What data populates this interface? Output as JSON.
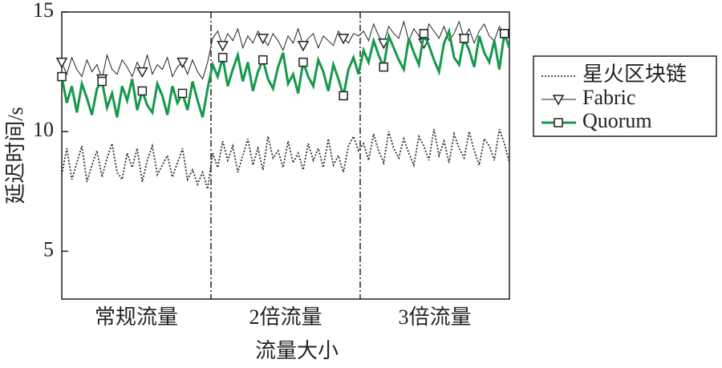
{
  "chart_data": {
    "type": "line",
    "x_label": "流量大小",
    "y_label": "延迟时间/s",
    "sections": [
      "常规流量",
      "2倍流量",
      "3倍流量"
    ],
    "ylim": [
      3,
      15
    ],
    "yticks": [
      5,
      10,
      15
    ],
    "legend": "right",
    "marker_every": 8,
    "series": [
      {
        "name": "星火区块链",
        "color": "#333333",
        "dash": "dotted",
        "marker": "none",
        "values": [
          8.2,
          9.3,
          8.0,
          8.7,
          9.4,
          7.9,
          8.6,
          9.2,
          8.1,
          8.9,
          9.5,
          8.3,
          8.0,
          9.1,
          8.5,
          9.3,
          7.9,
          8.8,
          9.4,
          8.2,
          8.6,
          9.0,
          8.1,
          8.7,
          9.3,
          8.0,
          8.4,
          7.8,
          8.3,
          7.6,
          9.1,
          8.5,
          9.6,
          8.8,
          9.4,
          8.3,
          9.0,
          9.7,
          8.6,
          9.3,
          8.4,
          9.8,
          8.9,
          9.2,
          8.5,
          9.6,
          8.7,
          9.1,
          8.4,
          9.5,
          8.8,
          9.3,
          8.5,
          9.7,
          8.6,
          9.0,
          8.3,
          9.4,
          9.8,
          9.2,
          9.5,
          8.8,
          9.9,
          9.2,
          8.7,
          10.0,
          9.3,
          8.9,
          9.7,
          9.1,
          8.6,
          9.8,
          9.4,
          8.8,
          10.1,
          9.0,
          9.6,
          8.7,
          9.9,
          9.3,
          8.9,
          10.0,
          9.2,
          8.6,
          9.7,
          9.4,
          8.8,
          10.1,
          9.5,
          8.7
        ]
      },
      {
        "name": "Fabric",
        "color": "#222222",
        "dash": "solid",
        "marker": "triangle",
        "values": [
          12.9,
          12.4,
          13.1,
          12.6,
          12.3,
          13.0,
          12.5,
          12.8,
          12.2,
          13.2,
          12.6,
          12.4,
          13.0,
          12.7,
          12.3,
          12.9,
          12.5,
          13.2,
          12.4,
          12.8,
          12.6,
          13.1,
          12.3,
          12.7,
          12.9,
          12.4,
          13.0,
          12.5,
          12.2,
          12.9,
          13.9,
          14.2,
          13.6,
          14.1,
          13.8,
          14.3,
          13.5,
          14.0,
          13.7,
          14.2,
          13.9,
          13.6,
          14.1,
          13.8,
          13.4,
          14.0,
          13.7,
          14.3,
          13.6,
          13.9,
          14.1,
          13.5,
          14.0,
          13.8,
          13.6,
          14.2,
          13.9,
          13.7,
          14.1,
          14.0,
          14.2,
          13.8,
          14.5,
          14.0,
          13.7,
          14.4,
          14.1,
          13.9,
          14.6,
          13.8,
          14.3,
          14.0,
          13.7,
          14.5,
          14.2,
          13.9,
          14.4,
          13.8,
          14.1,
          14.6,
          13.9,
          14.3,
          13.7,
          14.2,
          14.5,
          14.0,
          13.8,
          14.4,
          14.1,
          13.9
        ]
      },
      {
        "name": "Quorum",
        "color": "#16994a",
        "dash": "solid",
        "marker": "square",
        "values": [
          12.3,
          11.2,
          11.9,
          10.8,
          12.0,
          11.4,
          10.7,
          11.8,
          12.1,
          11.0,
          11.6,
          10.6,
          11.9,
          11.3,
          12.2,
          10.9,
          11.7,
          11.1,
          10.8,
          12.0,
          11.5,
          10.7,
          11.9,
          11.2,
          11.6,
          10.9,
          12.1,
          11.3,
          10.6,
          11.8,
          12.8,
          12.3,
          13.1,
          11.9,
          12.6,
          13.2,
          12.1,
          12.9,
          11.7,
          12.5,
          13.0,
          12.2,
          11.8,
          12.7,
          13.3,
          12.0,
          12.4,
          11.6,
          12.9,
          12.3,
          11.9,
          13.0,
          12.5,
          11.7,
          12.8,
          12.2,
          11.5,
          12.6,
          13.1,
          12.4,
          13.4,
          12.9,
          13.8,
          13.2,
          12.7,
          14.0,
          13.5,
          13.0,
          12.6,
          13.9,
          13.3,
          12.8,
          14.1,
          13.6,
          13.0,
          12.5,
          13.7,
          14.2,
          13.1,
          12.8,
          13.9,
          13.4,
          12.7,
          14.0,
          13.3,
          12.9,
          13.8,
          12.6,
          14.1,
          13.5
        ]
      }
    ]
  }
}
